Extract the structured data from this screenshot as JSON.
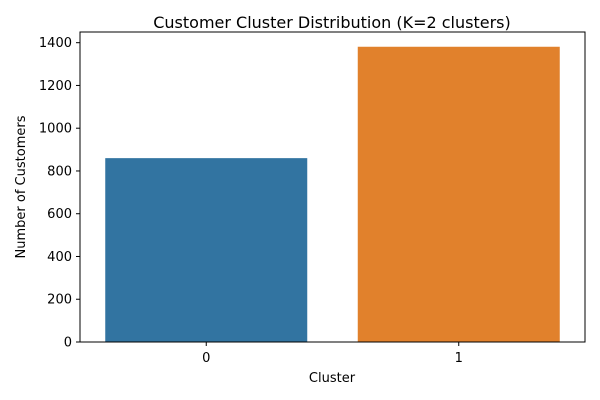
{
  "chart_data": {
    "type": "bar",
    "title": "Customer Cluster Distribution (K=2 clusters)",
    "xlabel": "Cluster",
    "ylabel": "Number of Customers",
    "categories": [
      "0",
      "1"
    ],
    "values": [
      860,
      1381
    ],
    "colors": [
      "#3274a1",
      "#e1812c"
    ],
    "ylim": [
      0,
      1450
    ],
    "yticks": [
      0,
      200,
      400,
      600,
      800,
      1000,
      1200,
      1400
    ],
    "grid": false,
    "legend": "none"
  }
}
